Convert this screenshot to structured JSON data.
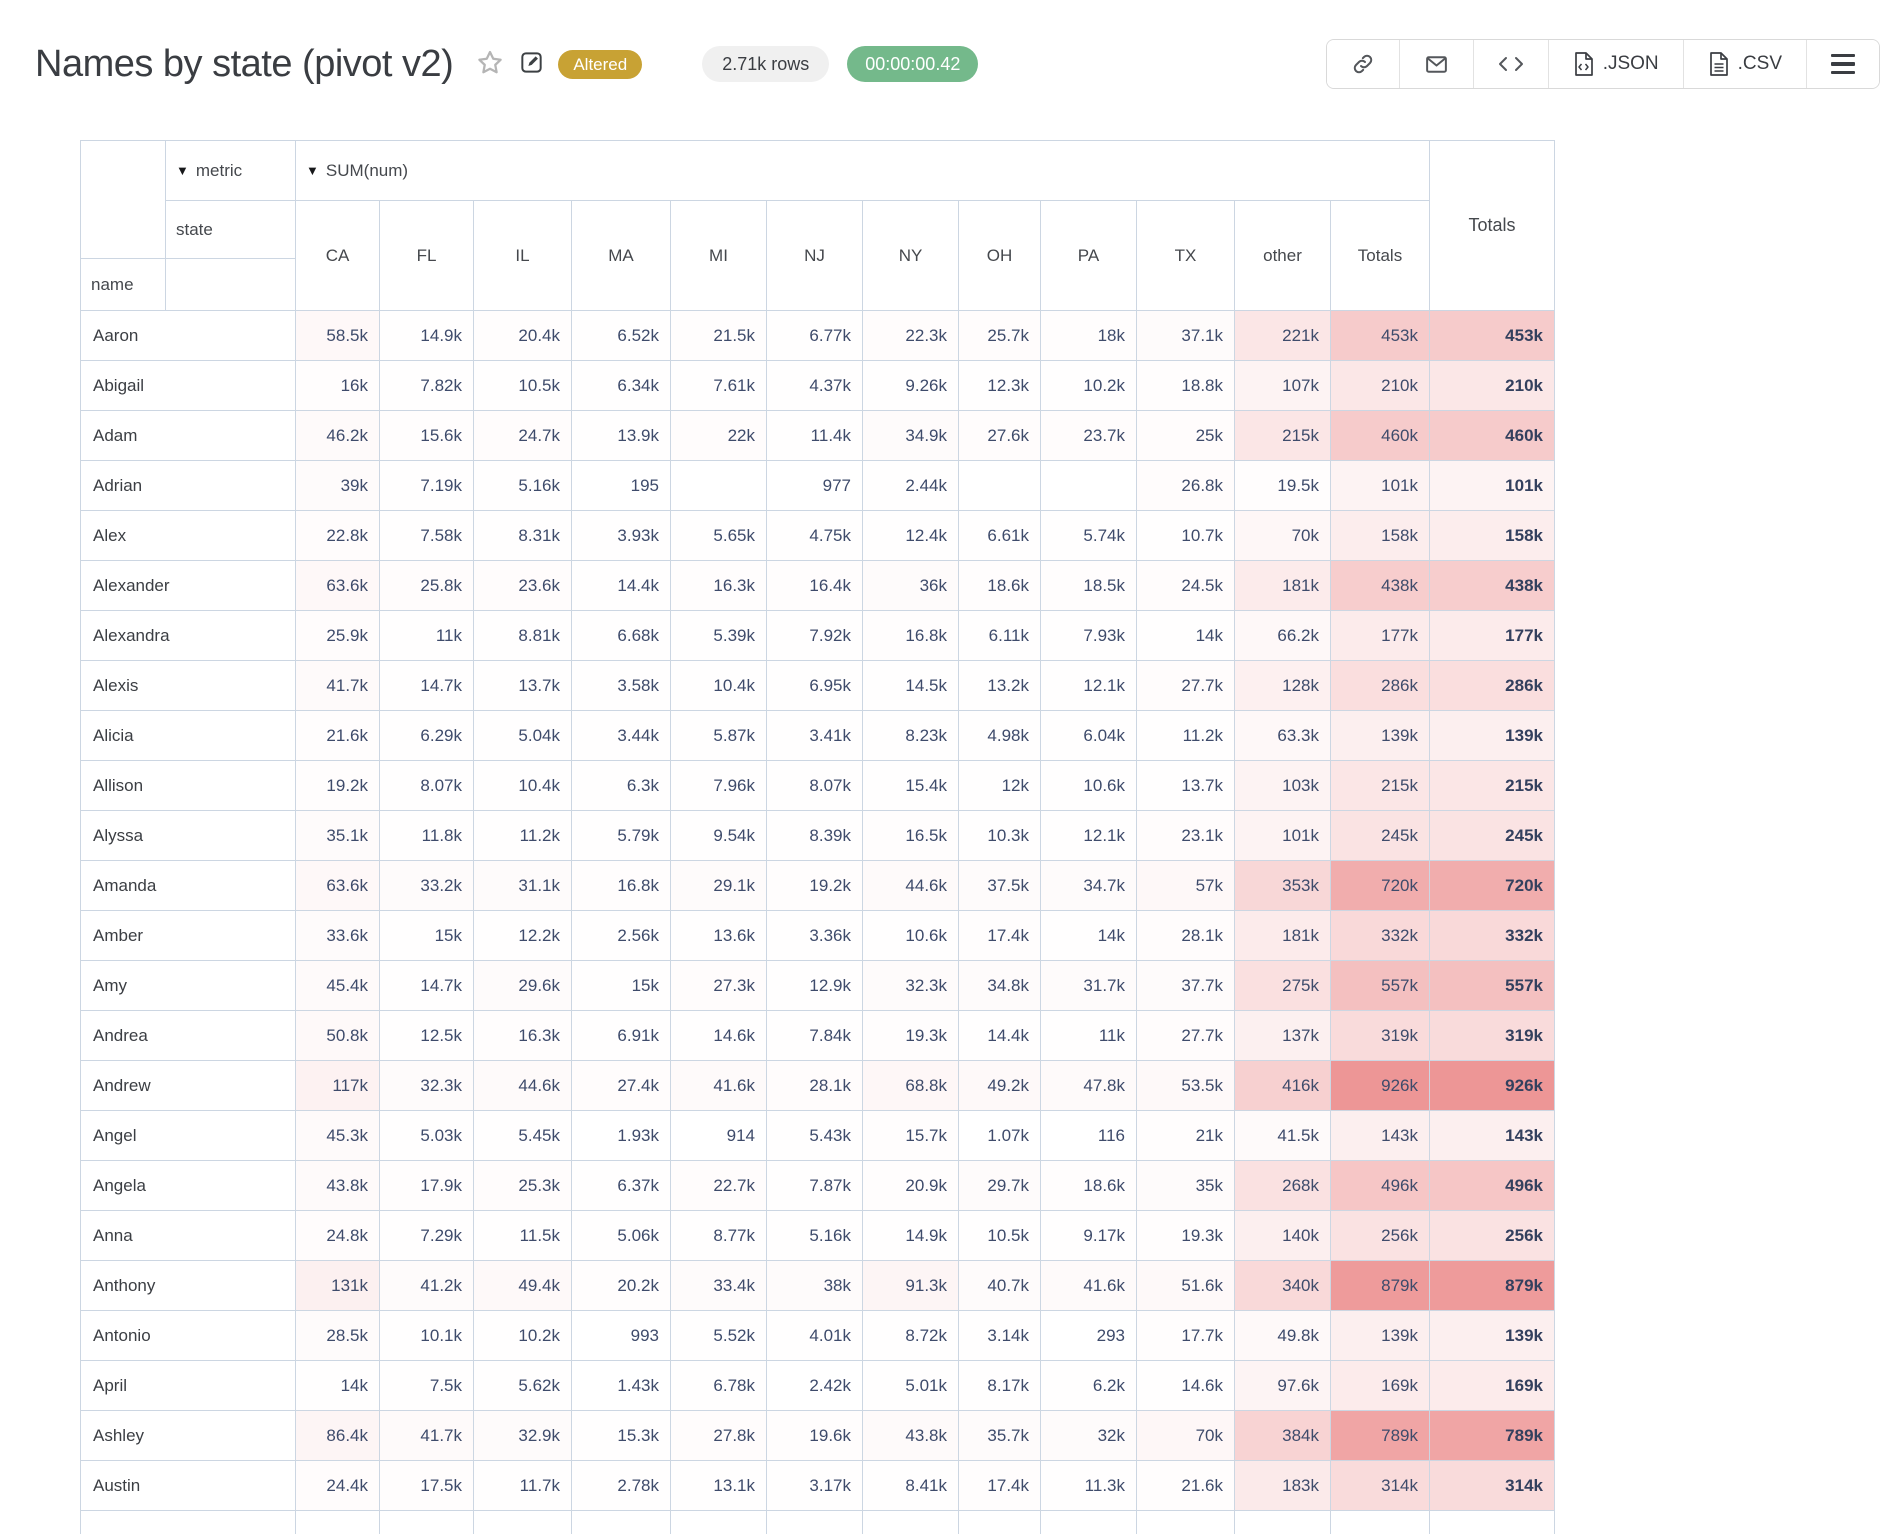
{
  "header": {
    "title": "Names by state (pivot v2)",
    "status_badge": "Altered",
    "rows_pill": "2.71k rows",
    "timer_pill": "00:00:00.42",
    "toolbar": {
      "json_label": ".JSON",
      "csv_label": ".CSV"
    }
  },
  "icons": {
    "dropdown": "▼"
  },
  "colors": {
    "heat_base": "#e04646",
    "badge_gold": "#c8a234",
    "timer_green": "#74b98b",
    "table_border": "#ccd6e2",
    "value_text": "#3e4b6b"
  },
  "pivot": {
    "metric_label": "metric",
    "sum_label": "SUM(num)",
    "state_label": "state",
    "name_label": "name",
    "row_totals_label": "Totals",
    "columns": [
      "CA",
      "FL",
      "IL",
      "MA",
      "MI",
      "NJ",
      "NY",
      "OH",
      "PA",
      "TX",
      "other",
      "Totals"
    ],
    "heat_max": 926000,
    "heat_max_alpha": 0.57,
    "rows": [
      {
        "name": "Aaron",
        "values": [
          "58.5k",
          "14.9k",
          "20.4k",
          "6.52k",
          "21.5k",
          "6.77k",
          "22.3k",
          "25.7k",
          "18k",
          "37.1k",
          "221k",
          "453k"
        ],
        "total": "453k"
      },
      {
        "name": "Abigail",
        "values": [
          "16k",
          "7.82k",
          "10.5k",
          "6.34k",
          "7.61k",
          "4.37k",
          "9.26k",
          "12.3k",
          "10.2k",
          "18.8k",
          "107k",
          "210k"
        ],
        "total": "210k"
      },
      {
        "name": "Adam",
        "values": [
          "46.2k",
          "15.6k",
          "24.7k",
          "13.9k",
          "22k",
          "11.4k",
          "34.9k",
          "27.6k",
          "23.7k",
          "25k",
          "215k",
          "460k"
        ],
        "total": "460k"
      },
      {
        "name": "Adrian",
        "values": [
          "39k",
          "7.19k",
          "5.16k",
          "195",
          "",
          "977",
          "2.44k",
          "",
          "",
          "26.8k",
          "19.5k",
          "101k"
        ],
        "total": "101k"
      },
      {
        "name": "Alex",
        "values": [
          "22.8k",
          "7.58k",
          "8.31k",
          "3.93k",
          "5.65k",
          "4.75k",
          "12.4k",
          "6.61k",
          "5.74k",
          "10.7k",
          "70k",
          "158k"
        ],
        "total": "158k"
      },
      {
        "name": "Alexander",
        "values": [
          "63.6k",
          "25.8k",
          "23.6k",
          "14.4k",
          "16.3k",
          "16.4k",
          "36k",
          "18.6k",
          "18.5k",
          "24.5k",
          "181k",
          "438k"
        ],
        "total": "438k"
      },
      {
        "name": "Alexandra",
        "values": [
          "25.9k",
          "11k",
          "8.81k",
          "6.68k",
          "5.39k",
          "7.92k",
          "16.8k",
          "6.11k",
          "7.93k",
          "14k",
          "66.2k",
          "177k"
        ],
        "total": "177k"
      },
      {
        "name": "Alexis",
        "values": [
          "41.7k",
          "14.7k",
          "13.7k",
          "3.58k",
          "10.4k",
          "6.95k",
          "14.5k",
          "13.2k",
          "12.1k",
          "27.7k",
          "128k",
          "286k"
        ],
        "total": "286k"
      },
      {
        "name": "Alicia",
        "values": [
          "21.6k",
          "6.29k",
          "5.04k",
          "3.44k",
          "5.87k",
          "3.41k",
          "8.23k",
          "4.98k",
          "6.04k",
          "11.2k",
          "63.3k",
          "139k"
        ],
        "total": "139k"
      },
      {
        "name": "Allison",
        "values": [
          "19.2k",
          "8.07k",
          "10.4k",
          "6.3k",
          "7.96k",
          "8.07k",
          "15.4k",
          "12k",
          "10.6k",
          "13.7k",
          "103k",
          "215k"
        ],
        "total": "215k"
      },
      {
        "name": "Alyssa",
        "values": [
          "35.1k",
          "11.8k",
          "11.2k",
          "5.79k",
          "9.54k",
          "8.39k",
          "16.5k",
          "10.3k",
          "12.1k",
          "23.1k",
          "101k",
          "245k"
        ],
        "total": "245k"
      },
      {
        "name": "Amanda",
        "values": [
          "63.6k",
          "33.2k",
          "31.1k",
          "16.8k",
          "29.1k",
          "19.2k",
          "44.6k",
          "37.5k",
          "34.7k",
          "57k",
          "353k",
          "720k"
        ],
        "total": "720k"
      },
      {
        "name": "Amber",
        "values": [
          "33.6k",
          "15k",
          "12.2k",
          "2.56k",
          "13.6k",
          "3.36k",
          "10.6k",
          "17.4k",
          "14k",
          "28.1k",
          "181k",
          "332k"
        ],
        "total": "332k"
      },
      {
        "name": "Amy",
        "values": [
          "45.4k",
          "14.7k",
          "29.6k",
          "15k",
          "27.3k",
          "12.9k",
          "32.3k",
          "34.8k",
          "31.7k",
          "37.7k",
          "275k",
          "557k"
        ],
        "total": "557k"
      },
      {
        "name": "Andrea",
        "values": [
          "50.8k",
          "12.5k",
          "16.3k",
          "6.91k",
          "14.6k",
          "7.84k",
          "19.3k",
          "14.4k",
          "11k",
          "27.7k",
          "137k",
          "319k"
        ],
        "total": "319k"
      },
      {
        "name": "Andrew",
        "values": [
          "117k",
          "32.3k",
          "44.6k",
          "27.4k",
          "41.6k",
          "28.1k",
          "68.8k",
          "49.2k",
          "47.8k",
          "53.5k",
          "416k",
          "926k"
        ],
        "total": "926k"
      },
      {
        "name": "Angel",
        "values": [
          "45.3k",
          "5.03k",
          "5.45k",
          "1.93k",
          "914",
          "5.43k",
          "15.7k",
          "1.07k",
          "116",
          "21k",
          "41.5k",
          "143k"
        ],
        "total": "143k"
      },
      {
        "name": "Angela",
        "values": [
          "43.8k",
          "17.9k",
          "25.3k",
          "6.37k",
          "22.7k",
          "7.87k",
          "20.9k",
          "29.7k",
          "18.6k",
          "35k",
          "268k",
          "496k"
        ],
        "total": "496k"
      },
      {
        "name": "Anna",
        "values": [
          "24.8k",
          "7.29k",
          "11.5k",
          "5.06k",
          "8.77k",
          "5.16k",
          "14.9k",
          "10.5k",
          "9.17k",
          "19.3k",
          "140k",
          "256k"
        ],
        "total": "256k"
      },
      {
        "name": "Anthony",
        "values": [
          "131k",
          "41.2k",
          "49.4k",
          "20.2k",
          "33.4k",
          "38k",
          "91.3k",
          "40.7k",
          "41.6k",
          "51.6k",
          "340k",
          "879k"
        ],
        "total": "879k"
      },
      {
        "name": "Antonio",
        "values": [
          "28.5k",
          "10.1k",
          "10.2k",
          "993",
          "5.52k",
          "4.01k",
          "8.72k",
          "3.14k",
          "293",
          "17.7k",
          "49.8k",
          "139k"
        ],
        "total": "139k"
      },
      {
        "name": "April",
        "values": [
          "14k",
          "7.5k",
          "5.62k",
          "1.43k",
          "6.78k",
          "2.42k",
          "5.01k",
          "8.17k",
          "6.2k",
          "14.6k",
          "97.6k",
          "169k"
        ],
        "total": "169k"
      },
      {
        "name": "Ashley",
        "values": [
          "86.4k",
          "41.7k",
          "32.9k",
          "15.3k",
          "27.8k",
          "19.6k",
          "43.8k",
          "35.7k",
          "32k",
          "70k",
          "384k",
          "789k"
        ],
        "total": "789k"
      },
      {
        "name": "Austin",
        "values": [
          "24.4k",
          "17.5k",
          "11.7k",
          "2.78k",
          "13.1k",
          "3.17k",
          "8.41k",
          "17.4k",
          "11.3k",
          "21.6k",
          "183k",
          "314k"
        ],
        "total": "314k"
      }
    ]
  }
}
